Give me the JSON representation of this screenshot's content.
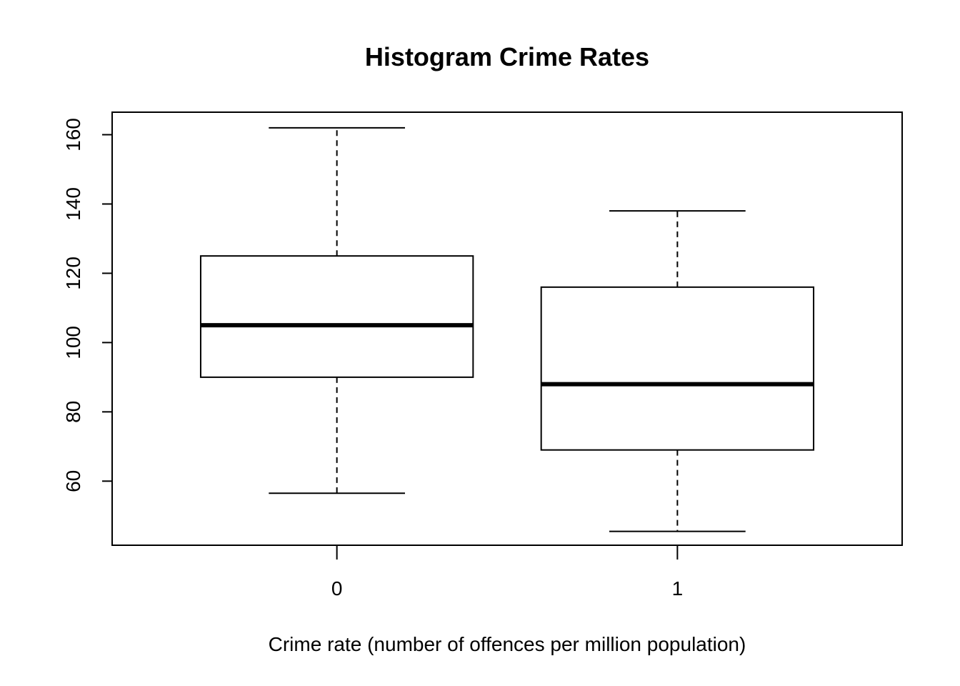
{
  "chart_data": {
    "type": "boxplot",
    "title": "Histogram Crime Rates",
    "xlabel": "Crime rate (number of offences per million population)",
    "ylabel": "",
    "categories": [
      "0",
      "1"
    ],
    "boxes": [
      {
        "category": "0",
        "min": 56.5,
        "q1": 90,
        "median": 105,
        "q3": 125,
        "max": 162
      },
      {
        "category": "1",
        "min": 45.5,
        "q1": 69,
        "median": 88,
        "q3": 116,
        "max": 138
      }
    ],
    "ylim": [
      41.5,
      166.5
    ],
    "yticks": [
      60,
      80,
      100,
      120,
      140,
      160
    ],
    "ytick_labels": [
      "60",
      "80",
      "100",
      "120",
      "140",
      "160"
    ],
    "grid": false,
    "colors": {
      "stroke": "#000000",
      "background": "#ffffff"
    }
  }
}
